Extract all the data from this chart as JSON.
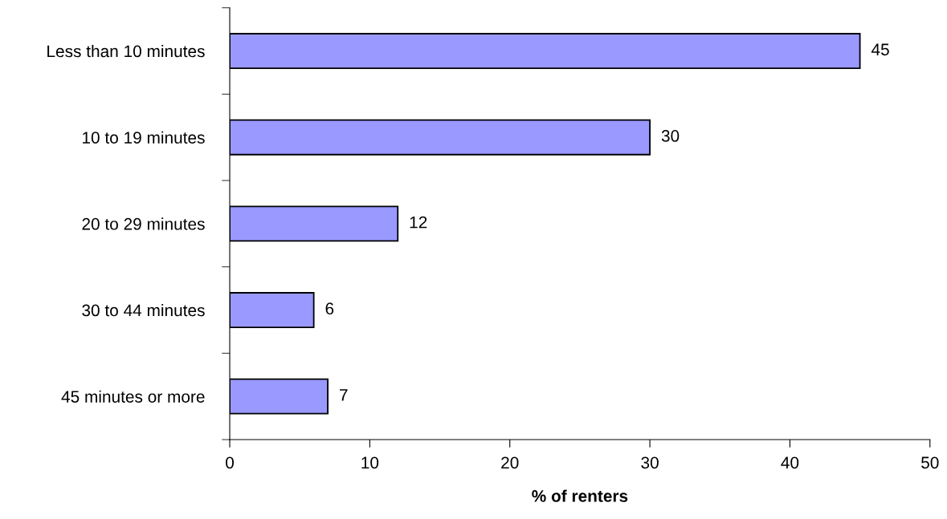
{
  "chart_data": {
    "type": "bar",
    "orientation": "horizontal",
    "xlabel": "% of renters",
    "categories": [
      "Less than 10 minutes",
      "10 to 19 minutes",
      "20 to 29 minutes",
      "30 to 44 minutes",
      "45 minutes or more"
    ],
    "values": [
      45,
      30,
      12,
      6,
      7
    ],
    "color": "#9999ff",
    "xlim": [
      0,
      50
    ],
    "xticks": [
      0,
      10,
      20,
      30,
      40,
      50
    ],
    "grid": false,
    "legend": false,
    "data_labels": true
  }
}
